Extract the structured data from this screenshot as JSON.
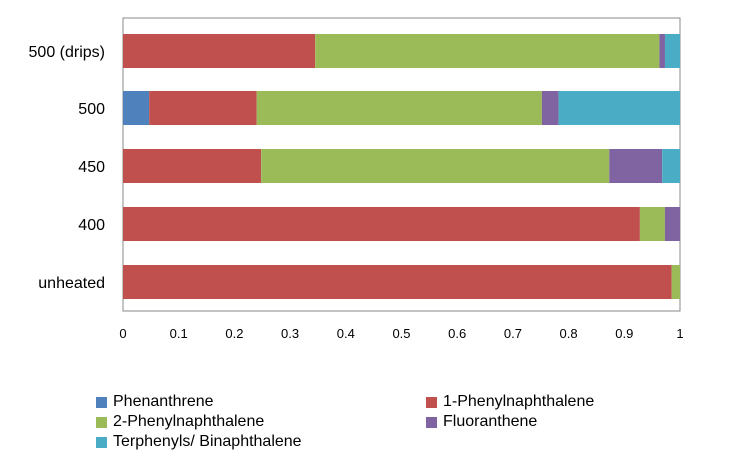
{
  "chart_data": {
    "type": "bar",
    "orientation": "horizontal",
    "stacked": true,
    "categories": [
      "500 (drips)",
      "500",
      "450",
      "400",
      "unheated"
    ],
    "series": [
      {
        "name": "Phenanthrene",
        "color": "#4F81BD",
        "values": [
          0,
          0.047,
          0,
          0,
          0
        ]
      },
      {
        "name": "1-Phenylnaphthalene",
        "color": "#C0504D",
        "values": [
          0.345,
          0.193,
          0.248,
          0.928,
          0.985
        ]
      },
      {
        "name": "2-Phenylnaphthalene",
        "color": "#9BBB59",
        "values": [
          0.618,
          0.512,
          0.625,
          0.045,
          0.015
        ]
      },
      {
        "name": "Fluoranthene",
        "color": "#8064A2",
        "values": [
          0.01,
          0.03,
          0.095,
          0.027,
          0
        ]
      },
      {
        "name": "Terphenyls/ Binaphthalene",
        "color": "#4BACC6",
        "values": [
          0.027,
          0.218,
          0.032,
          0,
          0
        ]
      }
    ],
    "x_ticks": [
      "0",
      "0.1",
      "0.2",
      "0.3",
      "0.4",
      "0.5",
      "0.6",
      "0.7",
      "0.8",
      "0.9",
      "1"
    ],
    "xlim": [
      0,
      1
    ],
    "grid": false,
    "legend_position": "bottom"
  }
}
